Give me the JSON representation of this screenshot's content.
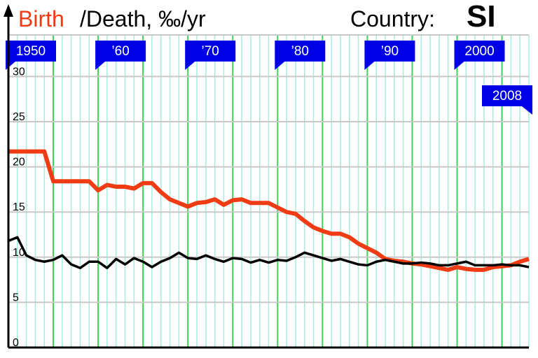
{
  "chart_data": {
    "type": "line",
    "country_label": "Country:",
    "country": "SI",
    "x": [
      1950,
      1951,
      1952,
      1953,
      1954,
      1955,
      1956,
      1957,
      1958,
      1959,
      1960,
      1961,
      1962,
      1963,
      1964,
      1965,
      1966,
      1967,
      1968,
      1969,
      1970,
      1971,
      1972,
      1973,
      1974,
      1975,
      1976,
      1977,
      1978,
      1979,
      1980,
      1981,
      1982,
      1983,
      1984,
      1985,
      1986,
      1987,
      1988,
      1989,
      1990,
      1991,
      1992,
      1993,
      1994,
      1995,
      1996,
      1997,
      1998,
      1999,
      2000,
      2001,
      2002,
      2003,
      2004,
      2005,
      2006,
      2007,
      2008
    ],
    "series": [
      {
        "name": "Birth",
        "color": "#f03c14",
        "values": [
          21.7,
          21.7,
          21.7,
          21.7,
          21.7,
          18.4,
          18.4,
          18.4,
          18.4,
          18.4,
          17.4,
          18.0,
          17.8,
          17.8,
          17.6,
          18.2,
          18.2,
          17.2,
          16.4,
          16.0,
          15.6,
          16.0,
          16.1,
          16.4,
          15.8,
          16.3,
          16.4,
          16.0,
          16.0,
          16.0,
          15.5,
          15.0,
          14.8,
          14.0,
          13.3,
          12.9,
          12.6,
          12.6,
          12.2,
          11.5,
          11.0,
          10.5,
          9.8,
          9.6,
          9.5,
          9.3,
          9.2,
          9.0,
          8.8,
          8.6,
          8.9,
          8.7,
          8.6,
          8.6,
          8.9,
          9.0,
          9.1,
          9.5,
          9.8
        ]
      },
      {
        "name": "/Death, ‰/yr",
        "color": "#000000",
        "values": [
          11.8,
          12.2,
          10.2,
          9.7,
          9.5,
          9.7,
          10.2,
          9.2,
          8.8,
          9.5,
          9.5,
          8.8,
          9.8,
          9.2,
          9.9,
          9.5,
          8.9,
          9.5,
          9.9,
          10.5,
          9.9,
          9.8,
          10.2,
          9.8,
          9.5,
          9.9,
          9.8,
          9.4,
          9.7,
          9.4,
          9.7,
          9.6,
          10.0,
          10.5,
          10.2,
          9.9,
          9.6,
          9.8,
          9.5,
          9.2,
          9.1,
          9.5,
          9.7,
          9.5,
          9.3,
          9.3,
          9.4,
          9.3,
          9.1,
          9.1,
          9.3,
          9.5,
          9.1,
          9.1,
          9.1,
          9.2,
          9.1,
          9.1,
          8.9
        ]
      }
    ],
    "xlim": [
      1950,
      2008
    ],
    "xticks": [
      {
        "value": 1950,
        "label": "1950"
      },
      {
        "value": 1960,
        "label": "’60"
      },
      {
        "value": 1970,
        "label": "’70"
      },
      {
        "value": 1980,
        "label": "’80"
      },
      {
        "value": 1990,
        "label": "’90"
      },
      {
        "value": 2000,
        "label": "2000"
      },
      {
        "value": 2008,
        "label": "2008"
      }
    ],
    "ylim": [
      0,
      34.6
    ],
    "yticks": [
      0,
      5,
      10,
      15,
      20,
      25,
      30
    ],
    "grid": true
  }
}
